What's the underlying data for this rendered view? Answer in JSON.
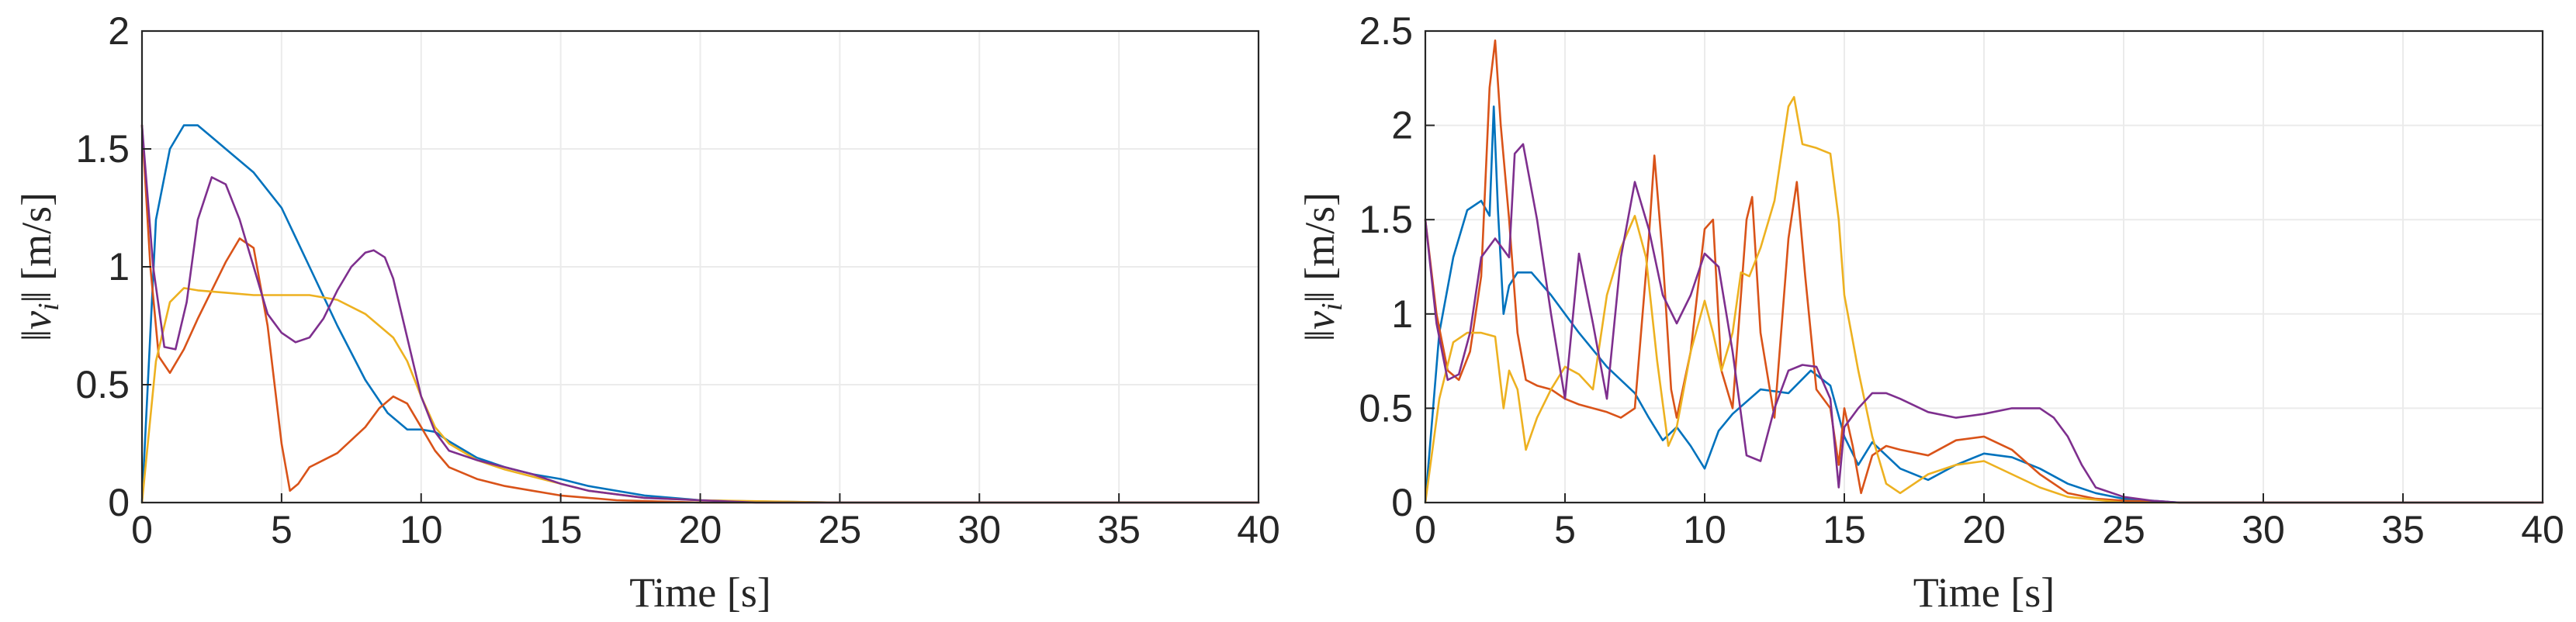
{
  "chart_data": [
    {
      "type": "line",
      "xlabel": "Time [s]",
      "ylabel": "‖v_i‖ [m/s]",
      "xlim": [
        0,
        40
      ],
      "ylim": [
        0,
        2
      ],
      "xticks": [
        0,
        5,
        10,
        15,
        20,
        25,
        30,
        35,
        40
      ],
      "yticks": [
        0,
        0.5,
        1,
        1.5,
        2
      ],
      "ytick_labels": [
        "0",
        "0.5",
        "1",
        "1.5",
        "2"
      ],
      "grid": true,
      "series": [
        {
          "color": "#0072BD",
          "x": [
            0,
            0.5,
            1,
            1.5,
            2,
            2.5,
            3,
            4,
            5,
            6,
            7,
            8,
            8.8,
            9.5,
            10,
            10.5,
            11,
            12,
            13,
            14,
            15,
            16,
            18,
            20,
            22,
            25,
            28,
            40
          ],
          "y": [
            0,
            1.2,
            1.5,
            1.6,
            1.6,
            1.55,
            1.5,
            1.4,
            1.25,
            1.0,
            0.75,
            0.52,
            0.38,
            0.31,
            0.31,
            0.3,
            0.26,
            0.19,
            0.15,
            0.12,
            0.1,
            0.07,
            0.03,
            0.01,
            0.005,
            0,
            0,
            0
          ]
        },
        {
          "color": "#D95319",
          "x": [
            0,
            0.3,
            0.6,
            1,
            1.5,
            2,
            2.5,
            3,
            3.5,
            4,
            4.5,
            5,
            5.3,
            5.6,
            6,
            6.5,
            7,
            8,
            8.5,
            9,
            9.5,
            10,
            10.5,
            11,
            12,
            13,
            14,
            15,
            17,
            20,
            40
          ],
          "y": [
            1.6,
            1.0,
            0.62,
            0.55,
            0.65,
            0.78,
            0.9,
            1.02,
            1.12,
            1.08,
            0.75,
            0.25,
            0.05,
            0.08,
            0.15,
            0.18,
            0.21,
            0.32,
            0.4,
            0.45,
            0.42,
            0.32,
            0.22,
            0.15,
            0.1,
            0.07,
            0.05,
            0.03,
            0.01,
            0,
            0
          ]
        },
        {
          "color": "#EDB120",
          "x": [
            0,
            0.5,
            1,
            1.5,
            2,
            3,
            4,
            5,
            6,
            7,
            8,
            9,
            9.5,
            10,
            10.5,
            11,
            12,
            13,
            14,
            15,
            16,
            18,
            20,
            25,
            40
          ],
          "y": [
            0,
            0.6,
            0.85,
            0.91,
            0.9,
            0.89,
            0.88,
            0.88,
            0.88,
            0.86,
            0.8,
            0.7,
            0.6,
            0.45,
            0.32,
            0.25,
            0.18,
            0.14,
            0.11,
            0.08,
            0.05,
            0.02,
            0.01,
            0,
            0
          ]
        },
        {
          "color": "#7E2F8E",
          "x": [
            0,
            0.4,
            0.8,
            1.2,
            1.6,
            2,
            2.5,
            3,
            3.5,
            4,
            4.5,
            5,
            5.5,
            6,
            6.5,
            7,
            7.5,
            8,
            8.3,
            8.7,
            9,
            9.5,
            10,
            10.5,
            11,
            12,
            13,
            14,
            15,
            16,
            18,
            20,
            22,
            40
          ],
          "y": [
            1.6,
            1.0,
            0.66,
            0.65,
            0.85,
            1.2,
            1.38,
            1.35,
            1.2,
            1.0,
            0.8,
            0.72,
            0.68,
            0.7,
            0.78,
            0.9,
            1.0,
            1.06,
            1.07,
            1.04,
            0.95,
            0.7,
            0.45,
            0.3,
            0.22,
            0.18,
            0.15,
            0.12,
            0.08,
            0.05,
            0.02,
            0.01,
            0,
            0
          ]
        }
      ]
    },
    {
      "type": "line",
      "xlabel": "Time [s]",
      "ylabel": "‖v_i‖ [m/s]",
      "xlim": [
        0,
        40
      ],
      "ylim": [
        0,
        2.5
      ],
      "xticks": [
        0,
        5,
        10,
        15,
        20,
        25,
        30,
        35,
        40
      ],
      "yticks": [
        0,
        0.5,
        1,
        1.5,
        2,
        2.5
      ],
      "ytick_labels": [
        "0",
        "0.5",
        "1",
        "1.5",
        "2",
        "2.5"
      ],
      "grid": true,
      "series": [
        {
          "color": "#0072BD",
          "x": [
            0,
            0.5,
            1,
            1.5,
            2,
            2.3,
            2.45,
            2.6,
            2.8,
            3.0,
            3.3,
            3.8,
            4.5,
            5.5,
            6.5,
            7.5,
            8,
            8.5,
            9,
            9.5,
            10,
            10.5,
            11,
            12,
            13,
            13.8,
            14.5,
            15,
            15.5,
            16,
            17,
            18,
            19,
            20,
            21,
            22,
            23,
            24,
            25,
            26,
            27,
            28,
            30,
            40
          ],
          "y": [
            0,
            0.9,
            1.3,
            1.55,
            1.6,
            1.52,
            2.1,
            1.55,
            1.0,
            1.15,
            1.22,
            1.22,
            1.1,
            0.9,
            0.72,
            0.58,
            0.45,
            0.33,
            0.4,
            0.3,
            0.18,
            0.38,
            0.47,
            0.6,
            0.58,
            0.7,
            0.62,
            0.35,
            0.2,
            0.32,
            0.18,
            0.12,
            0.2,
            0.26,
            0.24,
            0.18,
            0.1,
            0.05,
            0.02,
            0.01,
            0,
            0,
            0,
            0
          ]
        },
        {
          "color": "#D95319",
          "x": [
            0,
            0.4,
            0.8,
            1.2,
            1.6,
            2,
            2.3,
            2.5,
            2.7,
            3,
            3.3,
            3.6,
            4,
            4.5,
            5,
            5.5,
            6,
            6.5,
            7,
            7.5,
            8,
            8.2,
            8.5,
            8.8,
            9,
            9.5,
            10,
            10.3,
            10.6,
            11,
            11.5,
            11.7,
            12,
            12.5,
            13,
            13.3,
            13.6,
            14,
            14.5,
            14.8,
            15,
            15.3,
            15.6,
            16,
            16.5,
            17,
            18,
            19,
            20,
            21,
            22,
            23,
            24,
            25,
            27,
            40
          ],
          "y": [
            1.5,
            1.0,
            0.7,
            0.65,
            0.8,
            1.2,
            2.2,
            2.45,
            2.0,
            1.5,
            0.9,
            0.65,
            0.62,
            0.6,
            0.55,
            0.52,
            0.5,
            0.48,
            0.45,
            0.5,
            1.4,
            1.84,
            1.3,
            0.6,
            0.45,
            0.8,
            1.45,
            1.5,
            0.7,
            0.5,
            1.5,
            1.62,
            0.9,
            0.45,
            1.4,
            1.7,
            1.2,
            0.6,
            0.5,
            0.2,
            0.5,
            0.3,
            0.05,
            0.25,
            0.3,
            0.28,
            0.25,
            0.33,
            0.35,
            0.28,
            0.15,
            0.05,
            0.02,
            0.01,
            0,
            0
          ]
        },
        {
          "color": "#EDB120",
          "x": [
            0,
            0.5,
            1,
            1.5,
            2,
            2.5,
            2.8,
            3.0,
            3.3,
            3.6,
            4,
            4.5,
            5,
            5.5,
            6,
            6.5,
            7,
            7.5,
            7.9,
            8.3,
            8.7,
            9,
            9.5,
            10,
            10.3,
            10.6,
            11,
            11.3,
            11.6,
            12,
            12.5,
            13,
            13.2,
            13.5,
            14,
            14.5,
            14.8,
            15,
            15.5,
            16,
            16.5,
            17,
            17.5,
            18,
            19,
            20,
            21,
            22,
            23,
            25,
            40
          ],
          "y": [
            0,
            0.55,
            0.85,
            0.9,
            0.9,
            0.88,
            0.5,
            0.7,
            0.6,
            0.28,
            0.45,
            0.6,
            0.72,
            0.68,
            0.6,
            1.1,
            1.35,
            1.52,
            1.3,
            0.75,
            0.3,
            0.4,
            0.8,
            1.07,
            0.9,
            0.7,
            0.9,
            1.22,
            1.2,
            1.35,
            1.6,
            2.1,
            2.15,
            1.9,
            1.88,
            1.85,
            1.5,
            1.1,
            0.7,
            0.35,
            0.1,
            0.05,
            0.1,
            0.15,
            0.2,
            0.22,
            0.15,
            0.08,
            0.03,
            0,
            0
          ]
        },
        {
          "color": "#7E2F8E",
          "x": [
            0,
            0.4,
            0.8,
            1.2,
            1.6,
            2,
            2.5,
            3,
            3.2,
            3.5,
            4,
            4.5,
            5,
            5.5,
            6,
            6.5,
            7,
            7.5,
            8,
            8.5,
            9,
            9.5,
            10,
            10.5,
            11,
            11.5,
            12,
            12.5,
            13,
            13.5,
            14,
            14.5,
            14.8,
            15,
            15.5,
            16,
            16.5,
            17,
            18,
            19,
            20,
            21,
            22,
            22.5,
            23,
            23.5,
            24,
            25,
            26,
            27,
            40
          ],
          "y": [
            1.5,
            0.95,
            0.65,
            0.68,
            0.9,
            1.3,
            1.4,
            1.3,
            1.85,
            1.9,
            1.5,
            1.0,
            0.55,
            1.32,
            0.95,
            0.55,
            1.3,
            1.7,
            1.45,
            1.1,
            0.95,
            1.1,
            1.32,
            1.25,
            0.8,
            0.25,
            0.22,
            0.5,
            0.7,
            0.73,
            0.72,
            0.55,
            0.08,
            0.4,
            0.5,
            0.58,
            0.58,
            0.55,
            0.48,
            0.45,
            0.47,
            0.5,
            0.5,
            0.45,
            0.35,
            0.2,
            0.08,
            0.03,
            0.01,
            0,
            0
          ]
        }
      ]
    }
  ]
}
